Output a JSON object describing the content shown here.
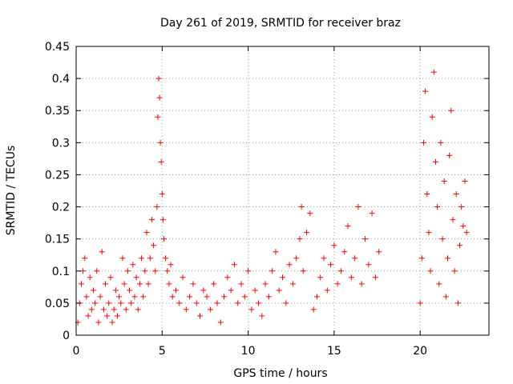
{
  "chart_data": {
    "type": "scatter",
    "title": "Day 261 of 2019, SRMTID for receiver braz",
    "xlabel": "GPS time / hours",
    "ylabel": "SRMTID / TECUs",
    "xlim": [
      0,
      24
    ],
    "ylim": [
      0,
      0.45
    ],
    "xticks": [
      0,
      5,
      10,
      15,
      20
    ],
    "yticks": [
      0,
      0.05,
      0.1,
      0.15,
      0.2,
      0.25,
      0.3,
      0.35,
      0.4,
      0.45
    ],
    "xtick_labels": [
      "0",
      "5",
      "10",
      "15",
      "20"
    ],
    "ytick_labels": [
      "0",
      "0.05",
      "0.1",
      "0.15",
      "0.2",
      "0.25",
      "0.3",
      "0.35",
      "0.4",
      "0.45"
    ],
    "grid": true,
    "marker": "+",
    "color": "#ff0000",
    "series": [
      {
        "name": "SRMTID",
        "points": [
          [
            0.1,
            0.02
          ],
          [
            0.2,
            0.05
          ],
          [
            0.3,
            0.08
          ],
          [
            0.4,
            0.1
          ],
          [
            0.5,
            0.12
          ],
          [
            0.6,
            0.06
          ],
          [
            0.7,
            0.03
          ],
          [
            0.8,
            0.09
          ],
          [
            0.9,
            0.04
          ],
          [
            1.0,
            0.07
          ],
          [
            1.1,
            0.05
          ],
          [
            1.2,
            0.1
          ],
          [
            1.3,
            0.02
          ],
          [
            1.4,
            0.06
          ],
          [
            1.5,
            0.13
          ],
          [
            1.6,
            0.04
          ],
          [
            1.7,
            0.08
          ],
          [
            1.8,
            0.03
          ],
          [
            1.9,
            0.05
          ],
          [
            2.0,
            0.09
          ],
          [
            2.1,
            0.02
          ],
          [
            2.2,
            0.04
          ],
          [
            2.3,
            0.07
          ],
          [
            2.4,
            0.03
          ],
          [
            2.5,
            0.06
          ],
          [
            2.6,
            0.05
          ],
          [
            2.7,
            0.12
          ],
          [
            2.8,
            0.08
          ],
          [
            2.9,
            0.04
          ],
          [
            3.0,
            0.1
          ],
          [
            3.1,
            0.07
          ],
          [
            3.2,
            0.05
          ],
          [
            3.3,
            0.11
          ],
          [
            3.4,
            0.06
          ],
          [
            3.5,
            0.09
          ],
          [
            3.6,
            0.04
          ],
          [
            3.7,
            0.08
          ],
          [
            3.8,
            0.12
          ],
          [
            3.9,
            0.06
          ],
          [
            4.0,
            0.1
          ],
          [
            4.1,
            0.16
          ],
          [
            4.2,
            0.08
          ],
          [
            4.3,
            0.12
          ],
          [
            4.4,
            0.18
          ],
          [
            4.5,
            0.14
          ],
          [
            4.6,
            0.1
          ],
          [
            4.7,
            0.2
          ],
          [
            4.75,
            0.34
          ],
          [
            4.8,
            0.4
          ],
          [
            4.85,
            0.37
          ],
          [
            4.9,
            0.3
          ],
          [
            4.95,
            0.27
          ],
          [
            5.0,
            0.22
          ],
          [
            5.05,
            0.18
          ],
          [
            5.1,
            0.15
          ],
          [
            5.2,
            0.12
          ],
          [
            5.3,
            0.1
          ],
          [
            5.4,
            0.08
          ],
          [
            5.5,
            0.11
          ],
          [
            5.6,
            0.06
          ],
          [
            5.8,
            0.07
          ],
          [
            6.0,
            0.05
          ],
          [
            6.2,
            0.09
          ],
          [
            6.4,
            0.04
          ],
          [
            6.6,
            0.06
          ],
          [
            6.8,
            0.08
          ],
          [
            7.0,
            0.05
          ],
          [
            7.2,
            0.03
          ],
          [
            7.4,
            0.07
          ],
          [
            7.6,
            0.06
          ],
          [
            7.8,
            0.04
          ],
          [
            8.0,
            0.08
          ],
          [
            8.2,
            0.05
          ],
          [
            8.4,
            0.02
          ],
          [
            8.6,
            0.06
          ],
          [
            8.8,
            0.09
          ],
          [
            9.0,
            0.07
          ],
          [
            9.2,
            0.11
          ],
          [
            9.4,
            0.05
          ],
          [
            9.6,
            0.08
          ],
          [
            9.8,
            0.06
          ],
          [
            10.0,
            0.1
          ],
          [
            10.2,
            0.04
          ],
          [
            10.4,
            0.07
          ],
          [
            10.6,
            0.05
          ],
          [
            10.8,
            0.03
          ],
          [
            11.0,
            0.08
          ],
          [
            11.2,
            0.06
          ],
          [
            11.4,
            0.1
          ],
          [
            11.6,
            0.13
          ],
          [
            11.8,
            0.07
          ],
          [
            12.0,
            0.09
          ],
          [
            12.2,
            0.05
          ],
          [
            12.4,
            0.11
          ],
          [
            12.6,
            0.08
          ],
          [
            12.8,
            0.12
          ],
          [
            13.0,
            0.15
          ],
          [
            13.1,
            0.2
          ],
          [
            13.2,
            0.1
          ],
          [
            13.4,
            0.16
          ],
          [
            13.6,
            0.19
          ],
          [
            13.8,
            0.04
          ],
          [
            14.0,
            0.06
          ],
          [
            14.2,
            0.09
          ],
          [
            14.4,
            0.12
          ],
          [
            14.6,
            0.07
          ],
          [
            14.8,
            0.11
          ],
          [
            15.0,
            0.14
          ],
          [
            15.2,
            0.08
          ],
          [
            15.4,
            0.1
          ],
          [
            15.6,
            0.13
          ],
          [
            15.8,
            0.17
          ],
          [
            16.0,
            0.09
          ],
          [
            16.2,
            0.12
          ],
          [
            16.4,
            0.2
          ],
          [
            16.6,
            0.08
          ],
          [
            16.8,
            0.15
          ],
          [
            17.0,
            0.11
          ],
          [
            17.2,
            0.19
          ],
          [
            17.4,
            0.09
          ],
          [
            17.6,
            0.13
          ],
          [
            20.0,
            0.05
          ],
          [
            20.1,
            0.12
          ],
          [
            20.2,
            0.3
          ],
          [
            20.3,
            0.38
          ],
          [
            20.4,
            0.22
          ],
          [
            20.5,
            0.16
          ],
          [
            20.6,
            0.1
          ],
          [
            20.7,
            0.34
          ],
          [
            20.8,
            0.41
          ],
          [
            20.9,
            0.27
          ],
          [
            21.0,
            0.2
          ],
          [
            21.1,
            0.08
          ],
          [
            21.2,
            0.3
          ],
          [
            21.3,
            0.15
          ],
          [
            21.4,
            0.24
          ],
          [
            21.5,
            0.06
          ],
          [
            21.6,
            0.12
          ],
          [
            21.7,
            0.28
          ],
          [
            21.8,
            0.35
          ],
          [
            21.9,
            0.18
          ],
          [
            22.0,
            0.1
          ],
          [
            22.1,
            0.22
          ],
          [
            22.2,
            0.05
          ],
          [
            22.3,
            0.14
          ],
          [
            22.4,
            0.2
          ],
          [
            22.5,
            0.17
          ],
          [
            22.6,
            0.24
          ],
          [
            22.7,
            0.16
          ]
        ]
      }
    ]
  }
}
